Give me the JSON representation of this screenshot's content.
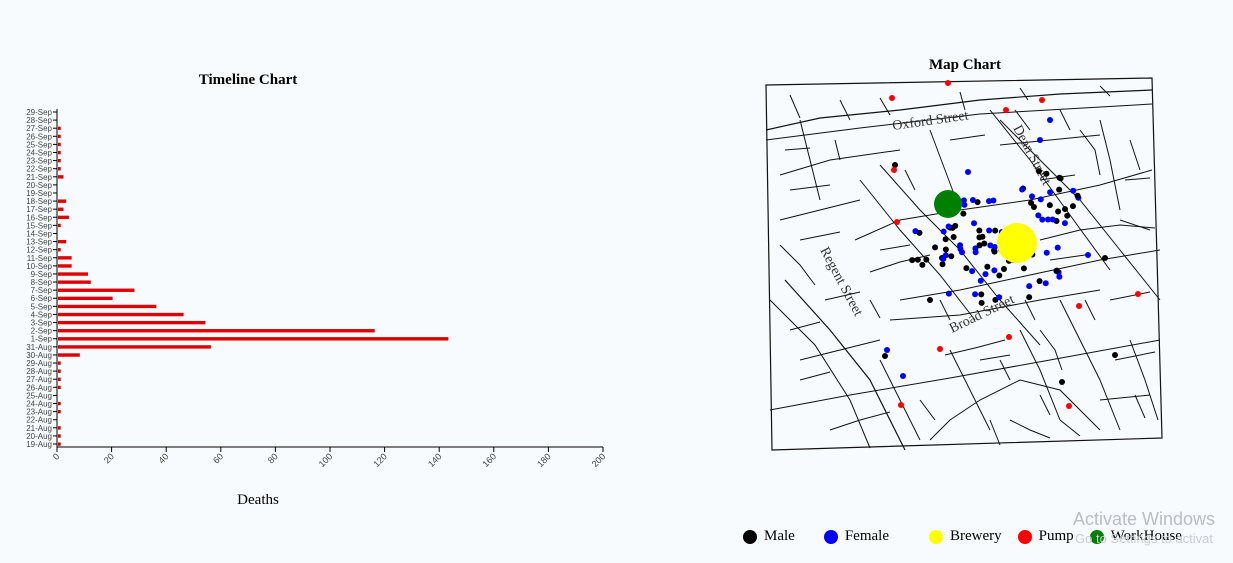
{
  "chart_data": [
    {
      "type": "bar",
      "orientation": "horizontal",
      "title": "Timeline Chart",
      "xlabel": "Deaths",
      "ylabel": "",
      "xlim": [
        0,
        200
      ],
      "xticks": [
        0,
        20,
        40,
        60,
        80,
        100,
        120,
        140,
        160,
        180,
        200
      ],
      "categories": [
        "19-Aug",
        "20-Aug",
        "21-Aug",
        "22-Aug",
        "23-Aug",
        "24-Aug",
        "25-Aug",
        "26-Aug",
        "27-Aug",
        "28-Aug",
        "29-Aug",
        "30-Aug",
        "31-Aug",
        "1-Sep",
        "2-Sep",
        "3-Sep",
        "4-Sep",
        "5-Sep",
        "6-Sep",
        "7-Sep",
        "8-Sep",
        "9-Sep",
        "10-Sep",
        "11-Sep",
        "12-Sep",
        "13-Sep",
        "14-Sep",
        "15-Sep",
        "16-Sep",
        "17-Sep",
        "18-Sep",
        "19-Sep",
        "20-Sep",
        "21-Sep",
        "22-Sep",
        "23-Sep",
        "24-Sep",
        "25-Sep",
        "26-Sep",
        "27-Sep",
        "28-Sep",
        "29-Sep"
      ],
      "values": [
        1,
        1,
        1,
        0,
        1,
        1,
        0,
        1,
        1,
        1,
        1,
        8,
        56,
        143,
        116,
        54,
        46,
        36,
        20,
        28,
        12,
        11,
        5,
        5,
        1,
        3,
        0,
        1,
        4,
        2,
        3,
        0,
        0,
        2,
        1,
        1,
        1,
        1,
        1,
        1,
        0,
        0
      ],
      "color": "#e00000"
    },
    {
      "type": "scatter",
      "title": "Map Chart",
      "streets": [
        "Oxford Street",
        "Dean Street",
        "Regent Street",
        "Broad Street"
      ],
      "legend": [
        {
          "label": "Male",
          "color": "#000000"
        },
        {
          "label": "Female",
          "color": "#0000ff"
        },
        {
          "label": "Brewery",
          "color": "#ffff00"
        },
        {
          "label": "Pump",
          "color": "#ff0000"
        },
        {
          "label": "WorkHouse",
          "color": "#008000"
        }
      ]
    }
  ],
  "overlay": {
    "activate": "Activate Windows",
    "settings": "Go to Settings to activat"
  }
}
